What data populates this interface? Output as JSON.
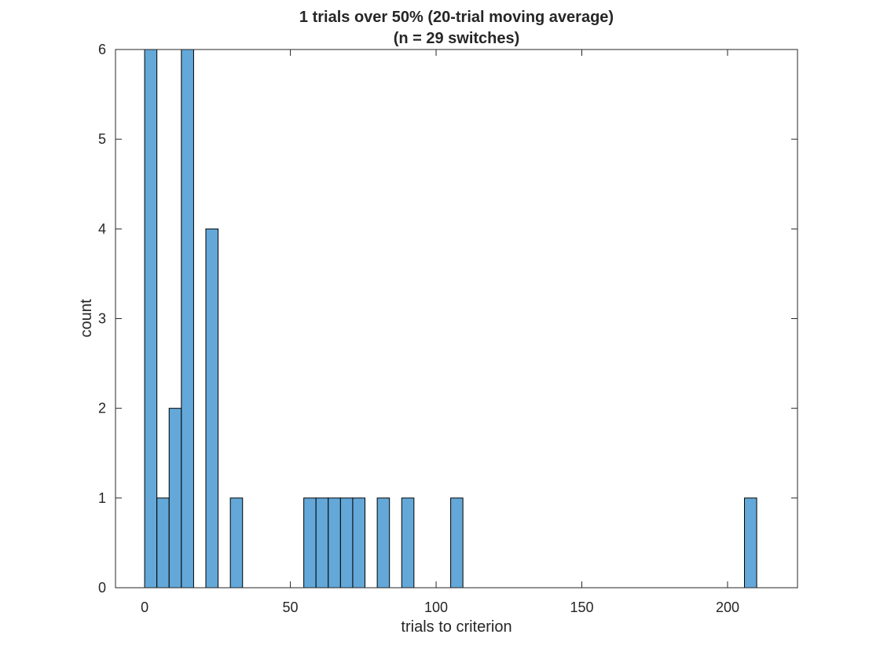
{
  "chart_data": {
    "type": "bar",
    "title": [
      "1 trials over 50% (20-trial moving average)",
      "(n = 29 switches)"
    ],
    "xlabel": "trials to criterion",
    "ylabel": "count",
    "xlim": [
      -10,
      224
    ],
    "ylim": [
      0,
      6
    ],
    "xticks": [
      0,
      50,
      100,
      150,
      200
    ],
    "yticks": [
      0,
      1,
      2,
      3,
      4,
      5,
      6
    ],
    "bin_width": 4.2,
    "bar_color": "#63a8d8",
    "edge_color": "#000000",
    "grid": false,
    "bins": [
      {
        "x0": 0.0,
        "x1": 4.2,
        "count": 6
      },
      {
        "x0": 4.2,
        "x1": 8.4,
        "count": 1
      },
      {
        "x0": 8.4,
        "x1": 12.6,
        "count": 2
      },
      {
        "x0": 12.6,
        "x1": 16.8,
        "count": 6
      },
      {
        "x0": 21.0,
        "x1": 25.2,
        "count": 4
      },
      {
        "x0": 29.4,
        "x1": 33.6,
        "count": 1
      },
      {
        "x0": 54.6,
        "x1": 58.8,
        "count": 1
      },
      {
        "x0": 58.8,
        "x1": 63.0,
        "count": 1
      },
      {
        "x0": 63.0,
        "x1": 67.2,
        "count": 1
      },
      {
        "x0": 67.2,
        "x1": 71.4,
        "count": 1
      },
      {
        "x0": 71.4,
        "x1": 75.6,
        "count": 1
      },
      {
        "x0": 79.8,
        "x1": 84.0,
        "count": 1
      },
      {
        "x0": 88.2,
        "x1": 92.4,
        "count": 1
      },
      {
        "x0": 105.0,
        "x1": 109.2,
        "count": 1
      },
      {
        "x0": 205.8,
        "x1": 210.0,
        "count": 1
      }
    ]
  }
}
